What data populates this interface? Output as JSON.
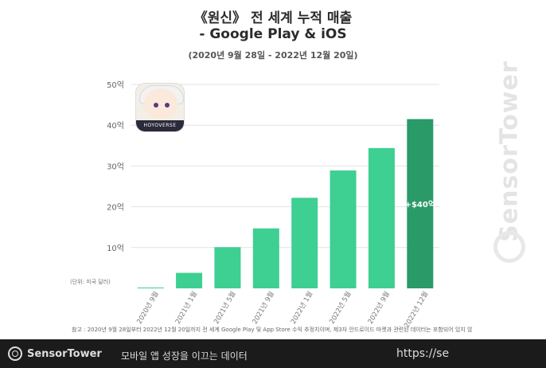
{
  "title_line1": "《원신》 전 세계 누적 매출",
  "title_line2": "- Google Play & iOS",
  "subtitle": "(2020년 9월 28일 - 2022년 12월 20일)",
  "unit_label": "(단위: 미국 달러)",
  "note": "참고 : 2020년 9월 28일부터 2022년 12월 20일까지 전 세계 Google Play 및 App Store 수익 추정치이며, 제3자 안드로이드 마켓과 관련된 데이터는 포함되어 있지 않",
  "footer": {
    "brand": "SensorTower",
    "tagline": "모바일 앱 성장을 이끄는 데이터",
    "url": "https://se"
  },
  "watermark": "SensorTower",
  "game_icon": {
    "band_text": "HOYOVERSE"
  },
  "colors": {
    "bar": "#3ecf92",
    "bar_highlight": "#2a9a68",
    "grid": "#e2e2e2"
  },
  "chart_data": {
    "type": "bar",
    "title": "《원신》 전 세계 누적 매출 - Google Play & iOS",
    "subtitle": "(2020년 9월 28일 - 2022년 12월 20일)",
    "ylabel": "(단위: 미국 달러)",
    "ylim": [
      0,
      50
    ],
    "yticks": [
      10,
      20,
      30,
      40,
      50
    ],
    "ytick_labels": [
      "10억",
      "20억",
      "30억",
      "40억",
      "50억"
    ],
    "categories": [
      "2020년 9월",
      "2021년 1월",
      "2021년 5월",
      "2021년 9월",
      "2022년 1월",
      "2022년 5월",
      "2022년 9월",
      "2022년 12월"
    ],
    "values": [
      0.2,
      3.8,
      10.1,
      14.7,
      22.2,
      28.9,
      34.4,
      41.5
    ],
    "highlight_index": 7,
    "data_labels": [
      {
        "index": 7,
        "text": "+$40억"
      }
    ],
    "grid": true,
    "legend": "none"
  }
}
